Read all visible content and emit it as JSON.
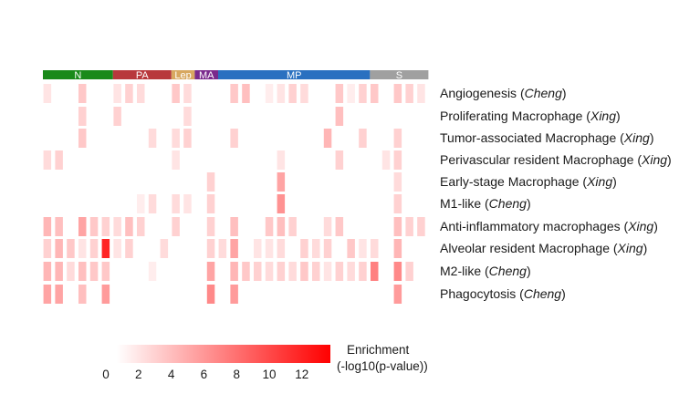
{
  "chart_data": {
    "type": "heatmap",
    "column_count": 33,
    "column_groups": [
      {
        "label": "N",
        "color": "#1a8a1a",
        "count": 6
      },
      {
        "label": "PA",
        "color": "#b8383c",
        "count": 5
      },
      {
        "label": "Lep",
        "color": "#d8a860",
        "count": 2
      },
      {
        "label": "MA",
        "color": "#7a2a8c",
        "count": 2
      },
      {
        "label": "MP",
        "color": "#2a70c0",
        "count": 13
      },
      {
        "label": "S",
        "color": "#a0a0a0",
        "count": 5
      }
    ],
    "rows": [
      {
        "name": "Angiogenesis",
        "source": "Cheng",
        "values": [
          1.5,
          0,
          0,
          3,
          0,
          0,
          1.5,
          2.5,
          2,
          0,
          0,
          3,
          2,
          0,
          0,
          0,
          3,
          3.5,
          0,
          1,
          1.5,
          2.5,
          2,
          0,
          0,
          3,
          1,
          2.5,
          3,
          0,
          3,
          2.5,
          1.5
        ]
      },
      {
        "name": "Proliferating Macrophage",
        "source": "Xing",
        "values": [
          0,
          0,
          0,
          2.5,
          0,
          0,
          2.5,
          0,
          0,
          0,
          0,
          0,
          2,
          0,
          0,
          0,
          0,
          0,
          0,
          0,
          0,
          0,
          0,
          0,
          0,
          3.5,
          0,
          0,
          0,
          0,
          0,
          0,
          0
        ]
      },
      {
        "name": "Tumor-associated Macrophage",
        "source": "Xing",
        "values": [
          0,
          0,
          0,
          3,
          0,
          0,
          0,
          0,
          0,
          2,
          0,
          2,
          2.5,
          0,
          0,
          0,
          2.5,
          0,
          0,
          0,
          0,
          0,
          0,
          0,
          4,
          0,
          0,
          2.5,
          0,
          0,
          2.5,
          0,
          0
        ]
      },
      {
        "name": "Perivascular resident Macrophage",
        "source": "Xing",
        "values": [
          2,
          2.5,
          0,
          0,
          0,
          0,
          0,
          0,
          0,
          0,
          0,
          1.5,
          0,
          0,
          0,
          0,
          0,
          0,
          0,
          0,
          1.5,
          0,
          0,
          0,
          0,
          2.5,
          0,
          0,
          0,
          1.5,
          2.5,
          0,
          0
        ]
      },
      {
        "name": "Early-stage Macrophage",
        "source": "Xing",
        "values": [
          0,
          0,
          0,
          0,
          0,
          0,
          0,
          0,
          0,
          0,
          0,
          0,
          0,
          0,
          2.5,
          0,
          0,
          0,
          0,
          0,
          5,
          0,
          0,
          0,
          0,
          0,
          0,
          0,
          0,
          0,
          2,
          0,
          0
        ]
      },
      {
        "name": "M1-like",
        "source": "Cheng",
        "values": [
          0,
          0,
          0,
          0,
          0,
          0,
          0,
          0,
          1,
          2,
          0,
          2,
          1.5,
          0,
          2.5,
          0,
          0,
          0,
          0,
          0,
          6,
          0,
          0,
          0,
          0,
          0,
          0,
          0,
          0,
          0,
          2.5,
          0,
          0
        ]
      },
      {
        "name": "Anti-inflammatory macrophages",
        "source": "Xing",
        "values": [
          4,
          3.5,
          0,
          5,
          3,
          2.5,
          2,
          3.5,
          2.5,
          0,
          0,
          2.5,
          0,
          0,
          2.5,
          0,
          3.5,
          0,
          0,
          3,
          3.5,
          2.5,
          0,
          0,
          2,
          3,
          0,
          0,
          0,
          0,
          3.5,
          2.5,
          2.5
        ]
      },
      {
        "name": "Alveolar resident Macrophage",
        "source": "Xing",
        "values": [
          2.5,
          4,
          3,
          1.5,
          2.5,
          12,
          1.5,
          2.5,
          0,
          0,
          2,
          0,
          0,
          0,
          2.5,
          2,
          5,
          0,
          1.5,
          1.5,
          2,
          0,
          2.5,
          2,
          2.5,
          0,
          3,
          1.5,
          2,
          0,
          4,
          0,
          0
        ]
      },
      {
        "name": "M2-like",
        "source": "Cheng",
        "values": [
          4,
          4,
          2,
          3.5,
          3,
          3,
          0,
          0,
          0,
          1,
          0,
          0,
          0,
          0,
          5,
          0,
          4,
          3,
          2.5,
          2,
          2.5,
          2,
          3,
          2.5,
          1.5,
          2.5,
          2,
          2.5,
          7,
          0,
          6.5,
          2.5,
          0
        ]
      },
      {
        "name": "Phagocytosis",
        "source": "Cheng",
        "values": [
          5,
          5,
          0,
          3.5,
          0,
          5.5,
          0,
          0,
          0,
          0,
          0,
          0,
          0,
          0,
          6.5,
          0,
          5.5,
          0,
          0,
          0,
          0,
          0,
          0,
          0,
          0,
          0,
          0,
          0,
          0,
          0,
          5.5,
          0,
          0
        ]
      }
    ],
    "color_scale": {
      "low_color": "#ffffff",
      "high_color": "#ff0000",
      "range": [
        0,
        14
      ],
      "ticks": [
        0,
        2,
        4,
        6,
        8,
        10,
        12
      ],
      "title": [
        "Enrichment",
        "(-log10(p-value))"
      ]
    }
  }
}
